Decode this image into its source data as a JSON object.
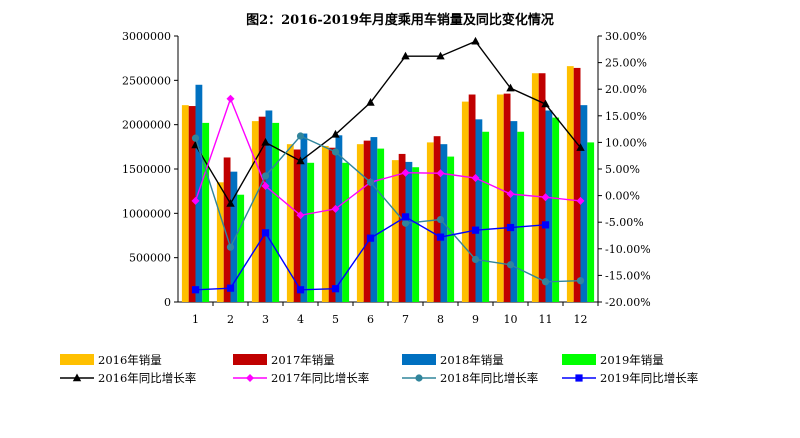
{
  "chart_data": {
    "type": "bar",
    "title": "图2：2016-2019年月度乘用车销量及同比变化情况",
    "categories": [
      "1",
      "2",
      "3",
      "4",
      "5",
      "6",
      "7",
      "8",
      "9",
      "10",
      "11",
      "12"
    ],
    "xlabel": "",
    "ylabel": "",
    "ylim": [
      0,
      3000000
    ],
    "y_ticks": [
      "3000000",
      "2500000",
      "2000000",
      "1500000",
      "1000000",
      "500000",
      "0"
    ],
    "y2lim": [
      -0.2,
      0.3
    ],
    "y2_ticks": [
      "30.00%",
      "25.00%",
      "20.00%",
      "15.00%",
      "10.00%",
      "5.00%",
      "0.00%",
      "-5.00%",
      "-10.00%",
      "-15.00%",
      "-20.00%"
    ],
    "legend_position": "bottom",
    "series": [
      {
        "name": "2016年销量",
        "kind": "bar",
        "axis": "left",
        "color": "#FFC000",
        "values": [
          2220000,
          1350000,
          2040000,
          1780000,
          1760000,
          1780000,
          1600000,
          1800000,
          2260000,
          2340000,
          2580000,
          2660000
        ]
      },
      {
        "name": "2017年销量",
        "kind": "bar",
        "axis": "left",
        "color": "#C00000",
        "values": [
          2210000,
          1630000,
          2090000,
          1720000,
          1740000,
          1820000,
          1670000,
          1870000,
          2340000,
          2350000,
          2580000,
          2640000
        ]
      },
      {
        "name": "2018年销量",
        "kind": "bar",
        "axis": "left",
        "color": "#0070C0",
        "values": [
          2450000,
          1470000,
          2160000,
          1900000,
          1880000,
          1860000,
          1580000,
          1780000,
          2060000,
          2040000,
          2160000,
          2220000
        ]
      },
      {
        "name": "2019年销量",
        "kind": "bar",
        "axis": "left",
        "color": "#00FF00",
        "values": [
          2020000,
          1210000,
          2020000,
          1570000,
          1570000,
          1730000,
          1520000,
          1640000,
          1920000,
          1920000,
          2080000,
          1800000
        ]
      },
      {
        "name": "2016年同比增长率",
        "kind": "line",
        "axis": "right",
        "color": "#000000",
        "marker": "triangle",
        "values": [
          0.095,
          -0.015,
          0.1,
          0.065,
          0.115,
          0.175,
          0.262,
          0.262,
          0.29,
          0.202,
          0.172,
          0.09
        ]
      },
      {
        "name": "2017年同比增长率",
        "kind": "line",
        "axis": "right",
        "color": "#FF00FF",
        "marker": "diamond",
        "values": [
          -0.01,
          0.182,
          0.018,
          -0.037,
          -0.025,
          0.025,
          0.043,
          0.042,
          0.033,
          0.003,
          -0.003,
          -0.01
        ]
      },
      {
        "name": "2018年同比增长率",
        "kind": "line",
        "axis": "right",
        "color": "#31859C",
        "marker": "circle",
        "values": [
          0.108,
          -0.097,
          0.037,
          0.112,
          0.082,
          0.025,
          -0.052,
          -0.045,
          -0.12,
          -0.13,
          -0.162,
          -0.16
        ]
      },
      {
        "name": "2019年同比增长率",
        "kind": "line",
        "axis": "right",
        "color": "#0000FF",
        "marker": "square",
        "values": [
          -0.177,
          -0.174,
          -0.07,
          -0.177,
          -0.175,
          -0.08,
          -0.04,
          -0.078,
          -0.065,
          -0.06,
          -0.055,
          null
        ]
      }
    ]
  }
}
